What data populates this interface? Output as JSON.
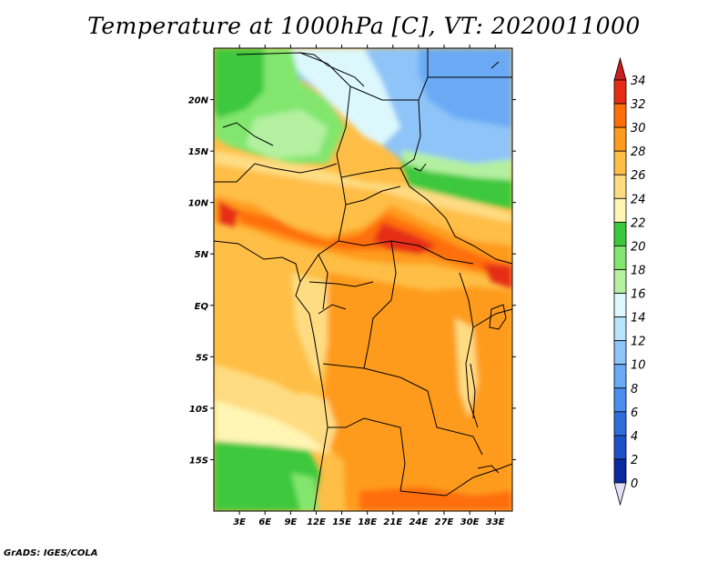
{
  "title": "Temperature at 1000hPa [C], VT: 2020011000",
  "credit": "GrADS: IGES/COLA",
  "chart_data": {
    "type": "heatmap",
    "variable": "Temperature at 1000hPa",
    "units": "C",
    "valid_time": "2020011000",
    "lon_range": [
      0,
      35
    ],
    "lat_range": [
      -20,
      25
    ],
    "lon_ticks": [
      "3E",
      "6E",
      "9E",
      "12E",
      "15E",
      "18E",
      "21E",
      "24E",
      "27E",
      "30E",
      "33E"
    ],
    "lon_tick_values": [
      3,
      6,
      9,
      12,
      15,
      18,
      21,
      24,
      27,
      30,
      33
    ],
    "lat_ticks": [
      "20N",
      "15N",
      "10N",
      "5N",
      "EQ",
      "5S",
      "10S",
      "15S"
    ],
    "lat_tick_values": [
      20,
      15,
      10,
      5,
      0,
      -5,
      -10,
      -15
    ],
    "colorbar": {
      "levels": [
        0,
        2,
        4,
        6,
        8,
        10,
        12,
        14,
        16,
        18,
        20,
        22,
        24,
        26,
        28,
        30,
        32,
        34
      ],
      "level_labels": [
        "0",
        "2",
        "4",
        "6",
        "8",
        "10",
        "12",
        "14",
        "16",
        "18",
        "20",
        "22",
        "24",
        "26",
        "28",
        "30",
        "32",
        "34"
      ],
      "colors": [
        "#1e1e78",
        "#0a28a0",
        "#1e50c8",
        "#2d6edc",
        "#4a8ff0",
        "#6aaaf5",
        "#8ec4f8",
        "#b8e4fc",
        "#dcf8fc",
        "#b4f0a0",
        "#82e66e",
        "#3cc83c",
        "#fff5b4",
        "#ffdc82",
        "#ffbe46",
        "#ff9b1e",
        "#ff6e0a",
        "#e62d14",
        "#c81e1e"
      ],
      "under_color": "#e0e0f8",
      "over_color": "#c81e1e"
    }
  }
}
